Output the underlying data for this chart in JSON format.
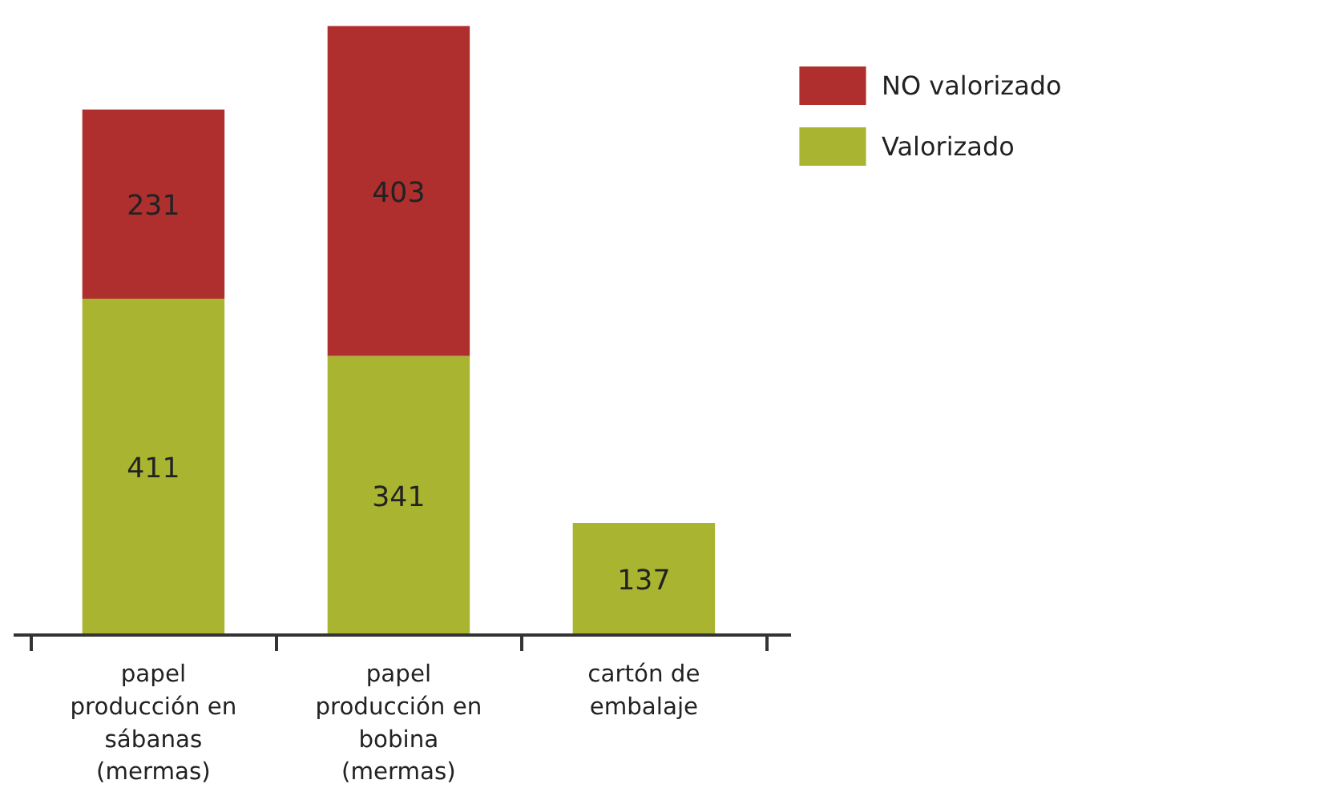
{
  "chart_data": {
    "type": "bar",
    "stacked": true,
    "data_labels": true,
    "legend": "top right",
    "grid": false,
    "categories": [
      "papel producción en sábanas (mermas)",
      "papel producción en bobina (mermas)",
      "cartón de embalaje"
    ],
    "series": [
      {
        "name": "Valorizado",
        "color": "#a9b431",
        "values": [
          411,
          341,
          137
        ]
      },
      {
        "name": "NO valorizado",
        "color": "#ae2f2e",
        "values": [
          231,
          403,
          null
        ]
      }
    ]
  }
}
